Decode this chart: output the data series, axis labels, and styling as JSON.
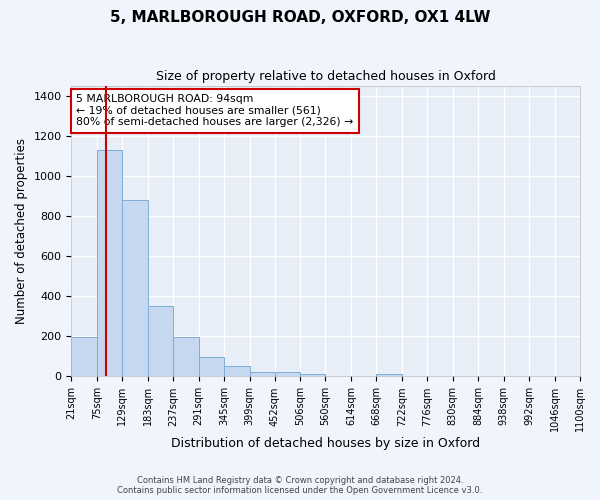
{
  "title": "5, MARLBOROUGH ROAD, OXFORD, OX1 4LW",
  "subtitle": "Size of property relative to detached houses in Oxford",
  "xlabel": "Distribution of detached houses by size in Oxford",
  "ylabel": "Number of detached properties",
  "bins": [
    21,
    75,
    129,
    183,
    237,
    291,
    345,
    399,
    452,
    506,
    560,
    614,
    668,
    722,
    776,
    830,
    884,
    938,
    992,
    1046,
    1100
  ],
  "counts": [
    197,
    1130,
    878,
    351,
    195,
    96,
    52,
    22,
    20,
    14,
    0,
    0,
    13,
    0,
    0,
    0,
    0,
    0,
    0,
    0
  ],
  "bar_color": "#c5d8f0",
  "bar_edge_color": "#7eadd4",
  "vline_color": "#cc0000",
  "vline_x": 94,
  "annotation_text": "5 MARLBOROUGH ROAD: 94sqm\n← 19% of detached houses are smaller (561)\n80% of semi-detached houses are larger (2,326) →",
  "annotation_box_color": "#ffffff",
  "annotation_box_edge": "#cc0000",
  "ylim": [
    0,
    1450
  ],
  "yticks": [
    0,
    200,
    400,
    600,
    800,
    1000,
    1200,
    1400
  ],
  "footer_text": "Contains HM Land Registry data © Crown copyright and database right 2024.\nContains public sector information licensed under the Open Government Licence v3.0.",
  "fig_background_color": "#f0f4fc",
  "plot_background": "#e8eef8",
  "grid_color": "#ffffff",
  "title_fontsize": 11,
  "subtitle_fontsize": 9,
  "xlabel_fontsize": 9,
  "ylabel_fontsize": 8.5,
  "tick_fontsize": 7,
  "ytick_fontsize": 8
}
